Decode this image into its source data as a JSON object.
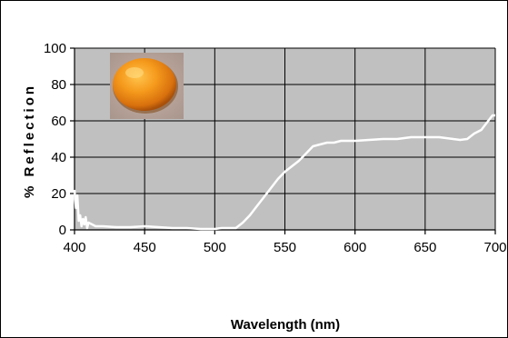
{
  "chart_data": {
    "type": "line",
    "title": "",
    "xlabel": "Wavelength (nm)",
    "ylabel": "% Reflection",
    "xlim": [
      400,
      700
    ],
    "ylim": [
      0,
      100
    ],
    "x_ticks": [
      "400",
      "450",
      "500",
      "550",
      "600",
      "650",
      "700"
    ],
    "y_ticks": [
      "0",
      "20",
      "40",
      "60",
      "80",
      "100"
    ],
    "grid": true,
    "plot_background": "#c0c0c0",
    "line_color": "#ffffff",
    "inset_image": "orange-fruit-photo",
    "series": [
      {
        "x": [
          400,
          401,
          402,
          403,
          404,
          405,
          406,
          407,
          408,
          409,
          410,
          415,
          420,
          430,
          440,
          450,
          460,
          470,
          480,
          490,
          500,
          505,
          510,
          515,
          520,
          525,
          530,
          535,
          540,
          545,
          550,
          555,
          560,
          565,
          570,
          575,
          580,
          585,
          590,
          600,
          610,
          620,
          630,
          640,
          650,
          660,
          670,
          675,
          680,
          685,
          690,
          695,
          698,
          700
        ],
        "y": [
          22,
          12,
          19,
          5,
          8,
          2,
          6,
          3,
          7,
          1,
          4,
          2,
          2,
          1.5,
          1.5,
          2,
          1.5,
          1,
          1,
          0.5,
          0.5,
          1,
          1,
          1,
          4,
          8,
          13,
          18,
          23,
          28,
          32,
          35,
          38,
          42,
          46,
          47,
          48,
          48,
          49,
          49,
          49.5,
          50,
          50,
          51,
          51,
          51,
          50,
          49.5,
          50,
          53,
          55,
          60,
          63,
          63
        ]
      }
    ]
  }
}
